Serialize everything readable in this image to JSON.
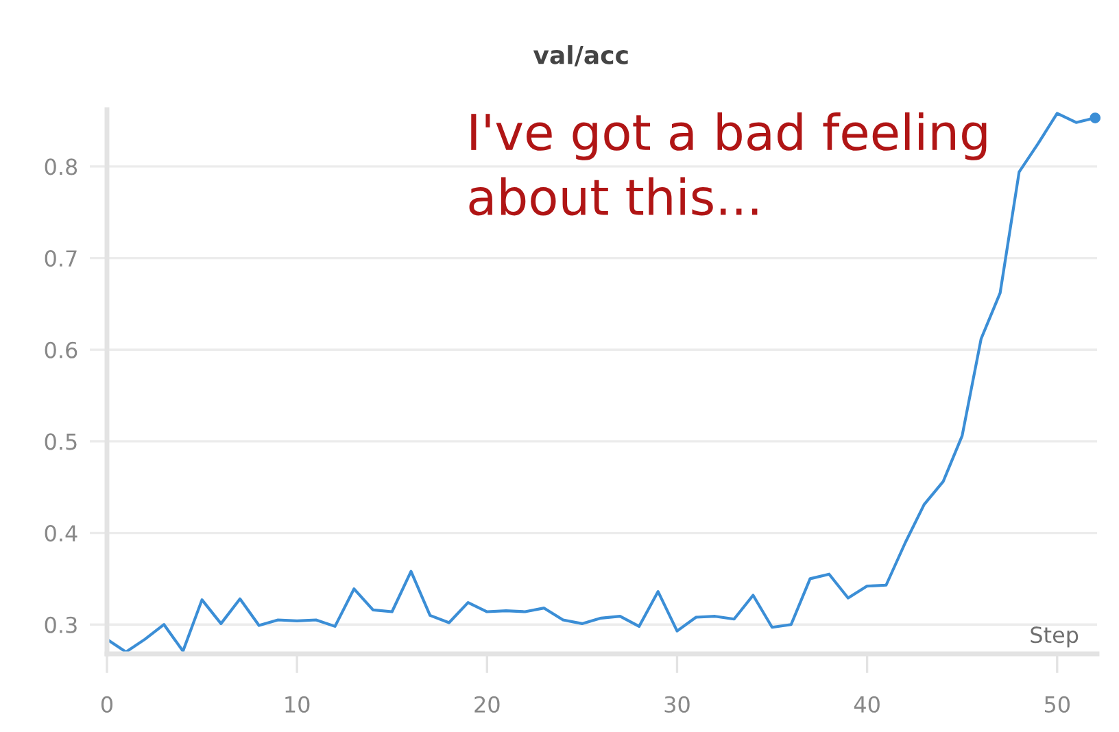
{
  "chart_data": {
    "type": "line",
    "title": "val/acc",
    "xlabel": "Step",
    "annotations": [
      "I've got a bad feeling\nabout this..."
    ],
    "x": [
      0,
      1,
      2,
      3,
      4,
      5,
      6,
      7,
      8,
      9,
      10,
      11,
      12,
      13,
      14,
      15,
      16,
      17,
      18,
      19,
      20,
      21,
      22,
      23,
      24,
      25,
      26,
      27,
      28,
      29,
      30,
      31,
      32,
      33,
      34,
      35,
      36,
      37,
      38,
      39,
      40,
      41,
      42,
      43,
      44,
      45,
      46,
      47,
      48,
      49,
      50,
      51,
      52
    ],
    "series": [
      {
        "color": "#3b8ed6",
        "values": [
          0.284,
          0.27,
          0.284,
          0.3,
          0.271,
          0.327,
          0.301,
          0.328,
          0.299,
          0.305,
          0.304,
          0.305,
          0.298,
          0.339,
          0.316,
          0.314,
          0.358,
          0.31,
          0.302,
          0.324,
          0.314,
          0.315,
          0.314,
          0.318,
          0.305,
          0.301,
          0.307,
          0.309,
          0.298,
          0.336,
          0.293,
          0.308,
          0.309,
          0.306,
          0.332,
          0.297,
          0.3,
          0.35,
          0.355,
          0.329,
          0.342,
          0.343,
          0.389,
          0.431,
          0.456,
          0.506,
          0.612,
          0.662,
          0.794,
          0.825,
          0.858,
          0.848,
          0.853
        ]
      },
      {
        "type": "scatter",
        "x": [
          52
        ],
        "color": "#3b8ed6",
        "values": [
          0.853
        ]
      }
    ],
    "xlim": [
      0,
      52.1
    ],
    "ylim": [
      0.268,
      0.862
    ],
    "xticks": [
      0,
      10,
      20,
      30,
      40,
      50
    ],
    "yticks": [
      0.3,
      0.4,
      0.5,
      0.6,
      0.7,
      0.8
    ],
    "grid": "y"
  }
}
